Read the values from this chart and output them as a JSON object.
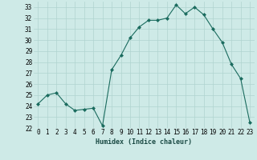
{
  "xlabel": "Humidex (Indice chaleur)",
  "ylabel": "",
  "x": [
    0,
    1,
    2,
    3,
    4,
    5,
    6,
    7,
    8,
    9,
    10,
    11,
    12,
    13,
    14,
    15,
    16,
    17,
    18,
    19,
    20,
    21,
    22,
    23
  ],
  "y": [
    24.2,
    25.0,
    25.2,
    24.2,
    23.6,
    23.7,
    23.8,
    22.2,
    27.3,
    28.6,
    30.2,
    31.2,
    31.8,
    31.8,
    32.0,
    33.2,
    32.4,
    33.0,
    32.3,
    31.0,
    29.8,
    27.8,
    26.5,
    22.5
  ],
  "line_color": "#1a6b5e",
  "marker": "D",
  "marker_size": 2.0,
  "bg_color": "#ceeae7",
  "grid_color": "#b0d4d0",
  "ylim": [
    22,
    33.5
  ],
  "yticks": [
    22,
    23,
    24,
    25,
    26,
    27,
    28,
    29,
    30,
    31,
    32,
    33
  ],
  "label_fontsize": 6.0,
  "tick_fontsize": 5.5
}
